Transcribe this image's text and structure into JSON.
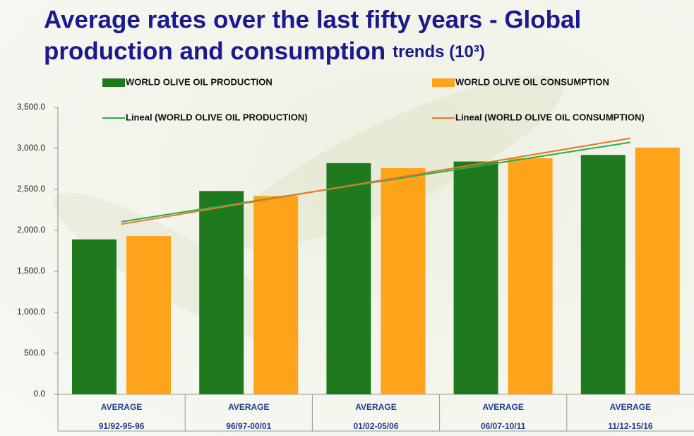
{
  "chart_data": {
    "type": "bar",
    "title": [
      "Average rates over the last fifty years - Global",
      "production and consumption",
      "trends (10³)"
    ],
    "categories": [
      [
        "AVERAGE",
        "91/92-95-96"
      ],
      [
        "AVERAGE",
        "96/97-00/01"
      ],
      [
        "AVERAGE",
        "01/02-05/06"
      ],
      [
        "AVERAGE",
        "06/07-10/11"
      ],
      [
        "AVERAGE",
        "11/12-15/16"
      ]
    ],
    "series": [
      {
        "name": "WORLD OLIVE OIL PRODUCTION",
        "type": "bar",
        "color": "#1f7a1f",
        "values": [
          1890,
          2480,
          2820,
          2840,
          2920
        ]
      },
      {
        "name": "WORLD OLIVE OIL CONSUMPTION",
        "type": "bar",
        "color": "#ffa31a",
        "values": [
          1930,
          2420,
          2760,
          2880,
          3010
        ]
      },
      {
        "name": "Lineal (WORLD OLIVE OIL PRODUCTION)",
        "type": "line",
        "color": "#22b24c",
        "values": [
          2106,
          2348,
          2590,
          2832,
          3074
        ]
      },
      {
        "name": "Lineal (WORLD OLIVE OIL CONSUMPTION)",
        "type": "line",
        "color": "#e8762c",
        "values": [
          2076,
          2338,
          2600,
          2862,
          3124
        ]
      }
    ],
    "ylim": [
      0,
      3500
    ],
    "yticks": [
      {
        "value": 0,
        "label": "0.0"
      },
      {
        "value": 500,
        "label": "500.0"
      },
      {
        "value": 1000,
        "label": "1,000.0"
      },
      {
        "value": 1500,
        "label": "1,500.0"
      },
      {
        "value": 2000,
        "label": "2,000.0"
      },
      {
        "value": 2500,
        "label": "2,500.0"
      },
      {
        "value": 3000,
        "label": "3,000.0"
      },
      {
        "value": 3500,
        "label": "3,500.0"
      }
    ],
    "legend": "top",
    "grid": false
  }
}
